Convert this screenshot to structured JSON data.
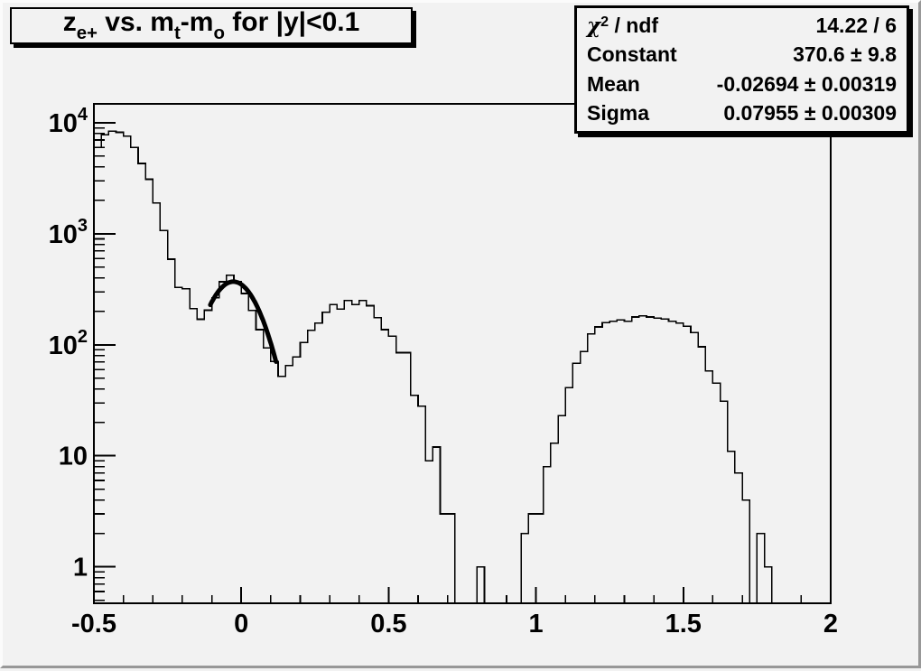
{
  "title": {
    "parts": [
      {
        "t": "z",
        "sub": "e+"
      },
      {
        "t": " vs. m",
        "sub": "t"
      },
      {
        "t": "-m",
        "sub": "o"
      },
      {
        "t": " for |y|<0.1",
        "sub": ""
      }
    ],
    "plain": "z_e+ vs. m_t-m_o for |y|<0.1"
  },
  "stats": {
    "rows": [
      {
        "label_base": "χ",
        "label_sup": "2",
        "label_rest": " / ndf",
        "value": "14.22 / 6"
      },
      {
        "label_base": "Constant",
        "label_sup": "",
        "label_rest": "",
        "value": "370.6 ± 9.8"
      },
      {
        "label_base": "Mean",
        "label_sup": "",
        "label_rest": "",
        "value": "-0.02694 ± 0.00319"
      },
      {
        "label_base": "Sigma",
        "label_sup": "",
        "label_rest": "",
        "value": "0.07955 ± 0.00309"
      }
    ]
  },
  "chart_data": {
    "type": "bar",
    "render": "root-histogram-step-outline",
    "title": "z_e+ vs. m_t-m_o for |y|<0.1",
    "xlabel": "",
    "ylabel": "",
    "xlim": [
      -0.5,
      2.0
    ],
    "ylim": [
      0.47,
      14800
    ],
    "yscale": "log",
    "grid": false,
    "legend_position": "none",
    "bin_start": -0.5,
    "bin_width": 0.025,
    "bin_values": [
      6000,
      7800,
      8400,
      8200,
      7600,
      6000,
      4300,
      3100,
      1900,
      1070,
      590,
      330,
      320,
      212,
      170,
      205,
      265,
      370,
      425,
      370,
      290,
      204,
      137,
      94,
      71,
      52,
      65,
      78,
      105,
      135,
      157,
      196,
      230,
      210,
      250,
      230,
      250,
      225,
      176,
      137,
      120,
      85,
      85,
      35,
      28,
      9,
      12,
      3,
      3,
      0,
      0,
      0,
      1,
      0,
      0,
      0,
      0,
      0,
      2,
      3,
      3,
      8,
      13,
      23,
      41,
      68,
      87,
      125,
      145,
      158,
      163,
      168,
      163,
      178,
      182,
      178,
      174,
      171,
      163,
      157,
      147,
      129,
      96,
      58,
      45,
      31,
      11,
      7,
      4,
      0,
      2,
      1,
      0,
      0,
      0,
      0,
      0,
      0,
      0,
      0
    ],
    "x_major_ticks": [
      -0.5,
      0,
      0.5,
      1,
      1.5,
      2
    ],
    "x_tick_labels": [
      "-0.5",
      "0",
      "0.5",
      "1",
      "1.5",
      "2"
    ],
    "x_minor_step": 0.1,
    "y_major_ticks": [
      1,
      10,
      100,
      1000,
      10000
    ],
    "y_tick_labels": [
      {
        "base": "1",
        "sup": ""
      },
      {
        "base": "10",
        "sup": ""
      },
      {
        "base": "10",
        "sup": "2"
      },
      {
        "base": "10",
        "sup": "3"
      },
      {
        "base": "10",
        "sup": "4"
      }
    ],
    "fit": {
      "name": "gaus",
      "constant": 370.6,
      "mean": -0.02694,
      "sigma": 0.07955,
      "draw_range": [
        -0.105,
        0.118
      ]
    }
  },
  "colors": {
    "canvas_bg": "#f2f2f2",
    "frame_line": "#000000",
    "hist_line": "#000000",
    "fit_line": "#000000",
    "bevel_dark": "#989898",
    "bevel_light": "#fbfbfb",
    "box_shadow": "#000000"
  }
}
